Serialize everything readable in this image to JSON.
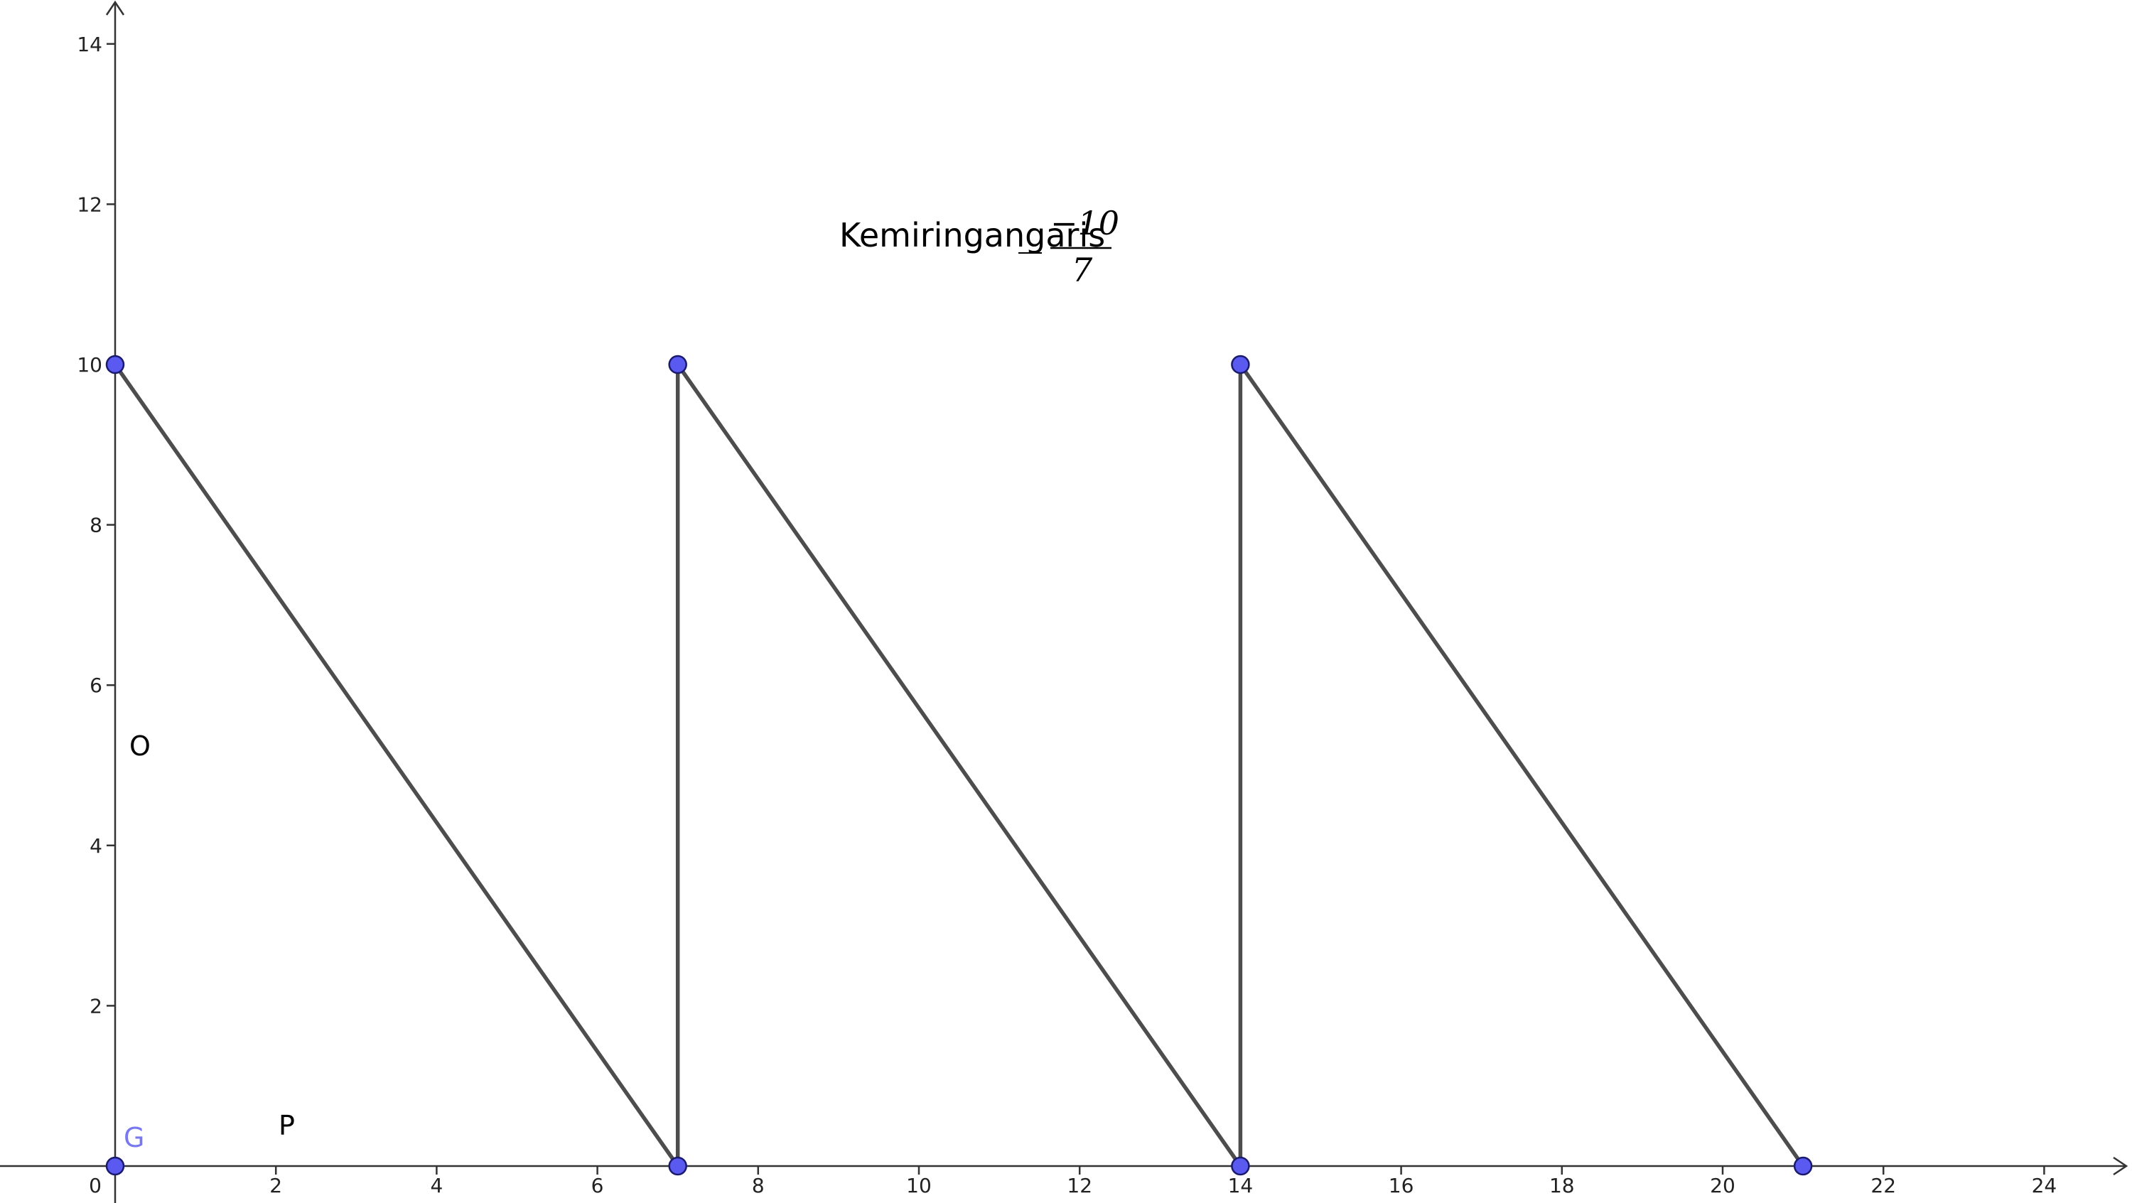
{
  "axes": {
    "x_ticks": [
      "0",
      "2",
      "4",
      "6",
      "8",
      "10",
      "12",
      "14",
      "16",
      "18",
      "20",
      "22",
      "24"
    ],
    "y_ticks": [
      "2",
      "4",
      "6",
      "8",
      "10",
      "12",
      "14"
    ]
  },
  "caption": {
    "text": "Kemiringangaris",
    "slope_numerator": "−10",
    "slope_denominator": "7"
  },
  "free_labels": {
    "o": "O",
    "p": "P",
    "g": "G"
  },
  "points": [
    {
      "x": 0,
      "y": 10
    },
    {
      "x": 0,
      "y": 0
    },
    {
      "x": 7,
      "y": 10
    },
    {
      "x": 7,
      "y": 0
    },
    {
      "x": 14,
      "y": 10
    },
    {
      "x": 14,
      "y": 0
    },
    {
      "x": 21,
      "y": 0
    }
  ],
  "segments": [
    {
      "from": [
        0,
        10
      ],
      "to": [
        7,
        0
      ]
    },
    {
      "from": [
        7,
        0
      ],
      "to": [
        7,
        10
      ]
    },
    {
      "from": [
        7,
        10
      ],
      "to": [
        14,
        0
      ]
    },
    {
      "from": [
        14,
        0
      ],
      "to": [
        14,
        10
      ]
    },
    {
      "from": [
        14,
        10
      ],
      "to": [
        21,
        0
      ]
    }
  ],
  "colors": {
    "segment": "#4d4d4d",
    "point_fill": "#5a5af0",
    "point_stroke": "#1a1a6e",
    "label_g": "#7878f0",
    "axis": "#333333"
  }
}
